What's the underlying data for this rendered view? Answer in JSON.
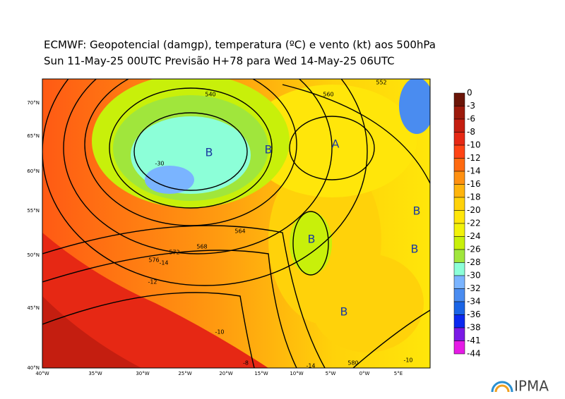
{
  "header": {
    "title": "ECMWF:  Geopotencial (damgp), temperatura (ºC) e vento (kt) aos 500hPa",
    "subtitle": "Sun 11-May-25 00UTC Previsão H+78 para Wed 14-May-25 06UTC"
  },
  "map": {
    "lat_labels": [
      "70°N",
      "65°N",
      "60°N",
      "55°N",
      "50°N",
      "45°N",
      "40°N"
    ],
    "lon_labels": [
      "40°W",
      "35°W",
      "30°W",
      "25°W",
      "20°W",
      "15°W",
      "10°W",
      "5°W",
      "0°W",
      "5°E"
    ],
    "centers": [
      "B",
      "B",
      "A",
      "B",
      "B",
      "B",
      "B"
    ],
    "contour_labels": [
      "540",
      "552",
      "560",
      "564",
      "568",
      "572",
      "576",
      "580"
    ],
    "temp_labels": [
      "-30",
      "-14",
      "-12",
      "-10",
      "-8",
      "-14",
      "-10"
    ]
  },
  "colorbar": {
    "labels": [
      0,
      -3,
      -6,
      -8,
      -10,
      -12,
      -14,
      -16,
      -18,
      -20,
      -22,
      -24,
      -26,
      -28,
      -30,
      -32,
      -34,
      -36,
      -38,
      -41,
      -44
    ],
    "colors": [
      "#6b1508",
      "#9c1a0c",
      "#c41e10",
      "#e62814",
      "#ff4414",
      "#ff6a10",
      "#ff9010",
      "#ffb40c",
      "#ffd20a",
      "#ffe60a",
      "#f2f20a",
      "#c8f00a",
      "#a0e63c",
      "#8cffd8",
      "#7ab4ff",
      "#4a8cf0",
      "#1a64e6",
      "#0a28f0",
      "#7a1ae6",
      "#e61ae6"
    ]
  },
  "logo": "IPMA"
}
